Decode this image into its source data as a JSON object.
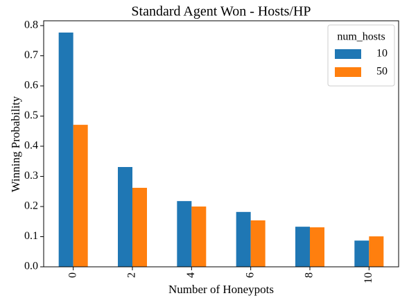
{
  "chart_data": {
    "type": "bar",
    "title": "Standard Agent Won - Hosts/HP",
    "x_label": "Number of Honeypots",
    "y_label": "Winning Probability",
    "categories": [
      "0",
      "2",
      "4",
      "6",
      "8",
      "10"
    ],
    "series": [
      {
        "name": "10",
        "color": "#1f77b4",
        "values": [
          0.777,
          0.331,
          0.218,
          0.182,
          0.133,
          0.087
        ]
      },
      {
        "name": "50",
        "color": "#ff7f0e",
        "values": [
          0.471,
          0.262,
          0.2,
          0.154,
          0.131,
          0.101
        ]
      }
    ],
    "legend_title": "num_hosts",
    "legend": "upper right",
    "ylim": [
      0,
      0.816
    ],
    "yticks": [
      {
        "value": 0,
        "label": "0.0"
      },
      0.1,
      0.2,
      0.3,
      0.4,
      0.5,
      0.6,
      0.7,
      0.8
    ]
  }
}
